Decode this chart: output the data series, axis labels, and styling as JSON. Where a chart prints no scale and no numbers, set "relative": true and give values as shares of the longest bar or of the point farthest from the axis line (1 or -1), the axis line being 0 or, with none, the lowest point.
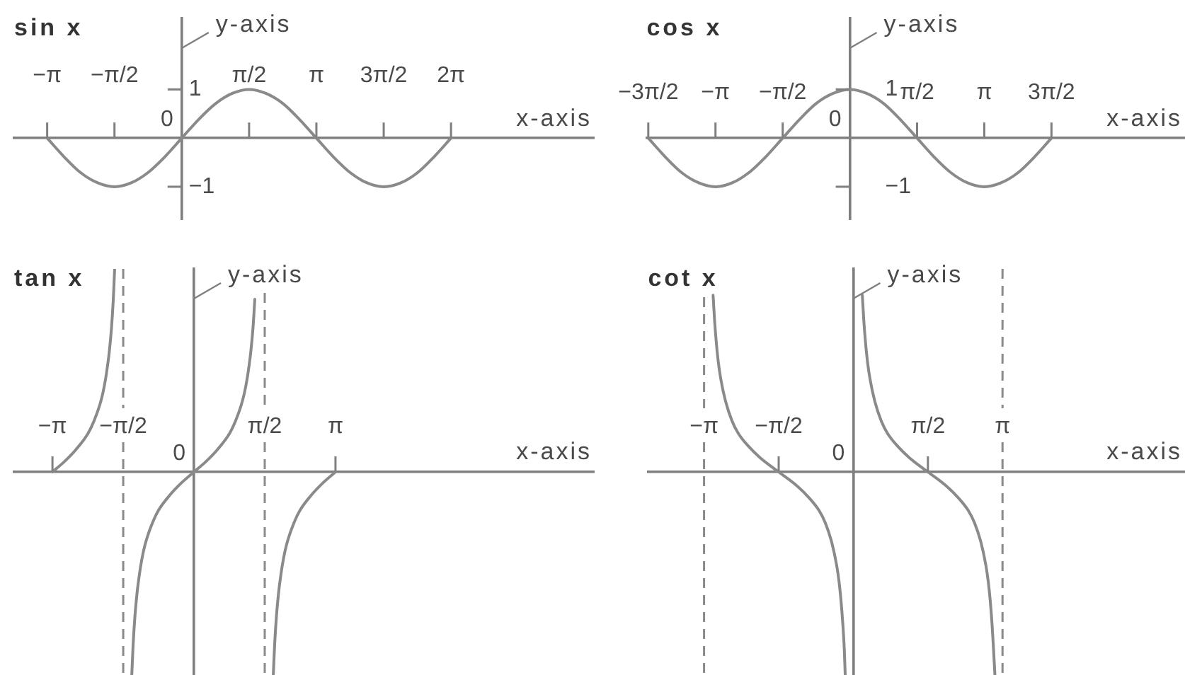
{
  "chart_data": [
    {
      "type": "line",
      "title": "sin x",
      "xlabel": "x-axis",
      "ylabel": "y-axis",
      "x": [
        -3.14,
        -2.75,
        -2.36,
        -1.96,
        -1.57,
        -1.18,
        -0.79,
        -0.39,
        0,
        0.39,
        0.79,
        1.18,
        1.57,
        1.96,
        2.36,
        2.75,
        3.14,
        3.53,
        3.93,
        4.32,
        4.71,
        5.11,
        5.5,
        5.89,
        6.28
      ],
      "values": [
        0,
        -0.38,
        -0.71,
        -0.92,
        -1,
        -0.92,
        -0.71,
        -0.38,
        0,
        0.38,
        0.71,
        0.92,
        1,
        0.92,
        0.71,
        0.38,
        0,
        -0.38,
        -0.71,
        -0.92,
        -1,
        -0.92,
        -0.71,
        -0.38,
        0
      ],
      "color": "#8a8a8a",
      "xlim": [
        -3.91,
        9.63
      ],
      "ylim": [
        -1.67,
        2.46
      ],
      "xticks": [
        {
          "value": -3.14,
          "label": "−π"
        },
        {
          "value": -1.57,
          "label": "−π/2"
        },
        {
          "value": 1.57,
          "label": "π/2"
        },
        {
          "value": 3.14,
          "label": "π"
        },
        {
          "value": 4.71,
          "label": "3π/2"
        },
        {
          "value": 6.28,
          "label": "2π"
        }
      ],
      "yticks": [
        {
          "value": -1,
          "label": "−1"
        },
        1
      ],
      "annotations": [
        "0"
      ]
    },
    {
      "type": "line",
      "title": "cos x",
      "xlabel": "x-axis",
      "ylabel": "y-axis",
      "x": [
        -4.71,
        -4.32,
        -3.93,
        -3.53,
        -3.14,
        -2.75,
        -2.36,
        -1.96,
        -1.57,
        -1.18,
        -0.79,
        -0.39,
        0,
        0.39,
        0.79,
        1.18,
        1.57,
        1.96,
        2.36,
        2.75,
        3.14,
        3.53,
        3.93,
        4.32,
        4.71
      ],
      "values": [
        0,
        -0.38,
        -0.71,
        -0.92,
        -1,
        -0.92,
        -0.71,
        -0.38,
        0,
        0.38,
        0.71,
        0.92,
        1,
        0.92,
        0.71,
        0.38,
        0,
        -0.38,
        -0.71,
        -0.92,
        -1,
        -0.92,
        -0.71,
        -0.38,
        0
      ],
      "color": "#8a8a8a",
      "xlim": [
        -4.75,
        7.83
      ],
      "ylim": [
        -1.67,
        2.46
      ],
      "xticks": [
        {
          "value": -4.71,
          "label": "−3π/2"
        },
        {
          "value": -3.14,
          "label": "−π"
        },
        {
          "value": -1.57,
          "label": "−π/2"
        },
        {
          "value": 1.57,
          "label": "π/2"
        },
        {
          "value": 3.14,
          "label": "π"
        },
        {
          "value": 4.71,
          "label": "3π/2"
        }
      ],
      "yticks": [
        {
          "value": -1,
          "label": "−1"
        },
        1
      ],
      "annotations": [
        "0"
      ]
    },
    {
      "type": "line",
      "title": "tan x",
      "xlabel": "x-axis",
      "ylabel": "y-axis",
      "relative": true,
      "x": [
        -3.14,
        -2.88,
        -2.62,
        -2.35,
        -2.22,
        -2.09,
        -2.02,
        -1.96,
        -1.92,
        -1.88,
        -1.83,
        -1.79,
        -1.76,
        -1.57,
        -1.38,
        -1.35,
        -1.31,
        -1.26,
        -1.22,
        -1.18,
        -1.12,
        -1.05,
        -0.92,
        -0.79,
        -0.52,
        -0.26,
        0,
        0.26,
        0.52,
        0.79,
        0.92,
        1.05,
        1.12,
        1.18,
        1.22,
        1.26,
        1.31,
        1.35,
        1.57,
        1.76,
        1.79,
        1.83,
        1.88,
        1.92,
        1.96,
        2.02,
        2.09,
        2.22,
        2.35,
        2.62,
        2.88,
        3.14
      ],
      "values": [
        0,
        0.05,
        0.11,
        0.19,
        0.25,
        0.33,
        0.39,
        0.46,
        0.52,
        0.59,
        0.71,
        0.85,
        1,
        null,
        -1,
        -0.85,
        -0.71,
        -0.59,
        -0.52,
        -0.46,
        -0.39,
        -0.33,
        -0.25,
        -0.19,
        -0.11,
        -0.05,
        0,
        0.05,
        0.11,
        0.19,
        0.25,
        0.33,
        0.39,
        0.46,
        0.52,
        0.59,
        0.71,
        0.85,
        null,
        -1,
        -0.85,
        -0.71,
        -0.59,
        -0.52,
        -0.46,
        -0.39,
        -0.33,
        -0.25,
        -0.19,
        -0.11,
        -0.05,
        0
      ],
      "color": "#8a8a8a",
      "xlim": [
        -3.99,
        8.89
      ],
      "xticks": [
        {
          "value": -3.14,
          "label": "−π"
        },
        {
          "value": -1.57,
          "label": "−π/2"
        },
        {
          "value": 1.57,
          "label": "π/2"
        },
        {
          "value": 3.14,
          "label": "π"
        }
      ],
      "annotations": [
        "0"
      ],
      "ref_lines": [
        {
          "axis": "x",
          "value": -1.57,
          "color": "#8a8a8a",
          "line_style": "dashed"
        },
        {
          "axis": "x",
          "value": 1.57,
          "color": "#8a8a8a",
          "line_style": "dashed"
        }
      ]
    },
    {
      "type": "line",
      "title": "cot x",
      "xlabel": "x-axis",
      "ylabel": "y-axis",
      "relative": true,
      "x": [
        -2.95,
        -2.92,
        -2.88,
        -2.84,
        -2.79,
        -2.69,
        -2.55,
        -2.42,
        -2.22,
        -1.96,
        -1.57,
        -1.18,
        -0.92,
        -0.72,
        -0.59,
        -0.45,
        -0.35,
        -0.3,
        -0.26,
        -0.22,
        -0.19,
        -0.17,
        0,
        0.19,
        0.22,
        0.26,
        0.3,
        0.35,
        0.45,
        0.59,
        0.72,
        0.92,
        1.18,
        1.57,
        1.96,
        2.22,
        2.42,
        2.55,
        2.69,
        2.79,
        2.84,
        2.88,
        2.92,
        2.95,
        2.98
      ],
      "values": [
        0.87,
        0.75,
        0.63,
        0.54,
        0.46,
        0.35,
        0.25,
        0.19,
        0.13,
        0.07,
        0,
        -0.07,
        -0.13,
        -0.19,
        -0.25,
        -0.35,
        -0.46,
        -0.54,
        -0.63,
        -0.75,
        -0.87,
        -1,
        null,
        0.87,
        0.75,
        0.63,
        0.54,
        0.46,
        0.35,
        0.25,
        0.19,
        0.13,
        0.07,
        0,
        -0.07,
        -0.13,
        -0.19,
        -0.25,
        -0.35,
        -0.46,
        -0.54,
        -0.63,
        -0.75,
        -0.87,
        -1
      ],
      "color": "#8a8a8a",
      "xlim": [
        -4.32,
        6.98
      ],
      "xticks": [
        {
          "value": -3.14,
          "label": "−π"
        },
        {
          "value": -1.57,
          "label": "−π/2"
        },
        {
          "value": 1.57,
          "label": "π/2"
        },
        {
          "value": 3.14,
          "label": "π"
        }
      ],
      "annotations": [
        "0"
      ],
      "ref_lines": [
        {
          "axis": "x",
          "value": -3.14,
          "color": "#8a8a8a",
          "line_style": "dashed"
        },
        {
          "axis": "x",
          "value": 3.14,
          "color": "#8a8a8a",
          "line_style": "dashed"
        }
      ]
    }
  ]
}
